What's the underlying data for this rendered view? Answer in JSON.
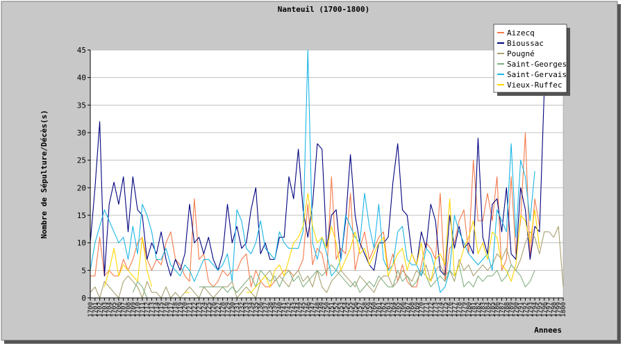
{
  "chart_data": {
    "type": "line",
    "title": "Nanteuil (1700-1800)",
    "xlabel": "Annees",
    "ylabel": "Nombre de Sépulture/Décès(s)",
    "ylim": [
      0,
      45
    ],
    "yticks": [
      0,
      5,
      10,
      15,
      20,
      25,
      30,
      35,
      40,
      45
    ],
    "xlim": [
      1700,
      1800
    ],
    "grid": true,
    "legend_position": "top-right",
    "x": [
      1700,
      1701,
      1702,
      1703,
      1704,
      1705,
      1706,
      1707,
      1708,
      1709,
      1710,
      1711,
      1712,
      1713,
      1714,
      1715,
      1716,
      1717,
      1718,
      1719,
      1720,
      1721,
      1722,
      1723,
      1724,
      1725,
      1726,
      1727,
      1728,
      1729,
      1730,
      1731,
      1732,
      1733,
      1734,
      1735,
      1736,
      1737,
      1738,
      1739,
      1740,
      1741,
      1742,
      1743,
      1744,
      1745,
      1746,
      1747,
      1748,
      1749,
      1750,
      1751,
      1752,
      1753,
      1754,
      1755,
      1756,
      1757,
      1758,
      1759,
      1760,
      1761,
      1762,
      1763,
      1764,
      1765,
      1766,
      1767,
      1768,
      1769,
      1770,
      1771,
      1772,
      1773,
      1774,
      1775,
      1776,
      1777,
      1778,
      1779,
      1780,
      1781,
      1782,
      1783,
      1784,
      1785,
      1786,
      1787,
      1788,
      1789,
      1790,
      1791,
      1792,
      1793,
      1794,
      1795,
      1796,
      1797,
      1798,
      1799,
      1800
    ],
    "series": [
      {
        "name": "Aizecq",
        "color": "#f4794a",
        "values": [
          4,
          4,
          11,
          4,
          5,
          4,
          4,
          7,
          5,
          7,
          10,
          11,
          7,
          5,
          7,
          6,
          10,
          12,
          7,
          6,
          4,
          3,
          18,
          7,
          8,
          3,
          2,
          3,
          5,
          4,
          5,
          5,
          7,
          8,
          2,
          5,
          3,
          2,
          2,
          3,
          4,
          5,
          5,
          4,
          5,
          7,
          17,
          6,
          9,
          8,
          4,
          22,
          7,
          9,
          8,
          19,
          5,
          9,
          12,
          7,
          9,
          11,
          12,
          5,
          8,
          3,
          6,
          3,
          2,
          2,
          6,
          10,
          9,
          7,
          19,
          3,
          9,
          10,
          14,
          16,
          8,
          25,
          14,
          14,
          19,
          14,
          22,
          5,
          7,
          22,
          8,
          14,
          30,
          7,
          18,
          13,
          null,
          null,
          null,
          null,
          null
        ]
      },
      {
        "name": "Bioussac",
        "color": "#00007f",
        "values": [
          10,
          20,
          32,
          4,
          17,
          21,
          17,
          22,
          12,
          22,
          16,
          15,
          7,
          10,
          8,
          12,
          7,
          4,
          7,
          5,
          8,
          17,
          10,
          11,
          8,
          11,
          7,
          5,
          8,
          17,
          10,
          13,
          9,
          10,
          16,
          20,
          8,
          10,
          7,
          7,
          11,
          11,
          22,
          18,
          27,
          16,
          11,
          17,
          28,
          27,
          9,
          15,
          16,
          7,
          14,
          26,
          15,
          10,
          8,
          6,
          5,
          10,
          10,
          11,
          21,
          28,
          16,
          15,
          8,
          6,
          12,
          9,
          17,
          14,
          5,
          4,
          15,
          9,
          13,
          9,
          10,
          8,
          29,
          11,
          8,
          17,
          18,
          12,
          20,
          8,
          7,
          20,
          16,
          7,
          13,
          12,
          38,
          null,
          null,
          null,
          null
        ]
      },
      {
        "name": "Pougné",
        "color": "#a8a070",
        "values": [
          1,
          2,
          0,
          3,
          2,
          1,
          0,
          3,
          4,
          3,
          2,
          0,
          3,
          1,
          1,
          0,
          2,
          0,
          1,
          0,
          1,
          2,
          1,
          0,
          2,
          1,
          0,
          1,
          2,
          2,
          3,
          0,
          1,
          2,
          1,
          0,
          3,
          4,
          5,
          3,
          4,
          3,
          2,
          4,
          5,
          3,
          4,
          2,
          5,
          2,
          1,
          3,
          4,
          5,
          4,
          3,
          2,
          4,
          3,
          2,
          1,
          3,
          4,
          4,
          2,
          3,
          5,
          4,
          3,
          5,
          4,
          6,
          3,
          5,
          6,
          4,
          5,
          3,
          7,
          5,
          6,
          4,
          5,
          6,
          5,
          6,
          8,
          7,
          9,
          6,
          5,
          7,
          10,
          12,
          11,
          8,
          12,
          12,
          11,
          13,
          2
        ]
      },
      {
        "name": "Saint-Georges",
        "color": "#7fae7f",
        "values": [
          null,
          null,
          null,
          null,
          null,
          null,
          null,
          null,
          null,
          1,
          3,
          2,
          0,
          null,
          null,
          null,
          null,
          null,
          null,
          null,
          null,
          null,
          null,
          2,
          2,
          2,
          2,
          2,
          2,
          1,
          2,
          1,
          2,
          3,
          4,
          2,
          5,
          4,
          3,
          4,
          2,
          4,
          5,
          3,
          4,
          2,
          3,
          4,
          5,
          4,
          5,
          6,
          5,
          4,
          3,
          2,
          3,
          1,
          2,
          3,
          2,
          4,
          3,
          2,
          2,
          5,
          3,
          4,
          2,
          3,
          5,
          4,
          2,
          3,
          4,
          3,
          5,
          4,
          6,
          2,
          3,
          2,
          4,
          3,
          4,
          4,
          5,
          3,
          4,
          6,
          5,
          4,
          2,
          3,
          5,
          null,
          null,
          null,
          null,
          null,
          null
        ]
      },
      {
        "name": "Saint-Gervais",
        "color": "#1ab6e6",
        "values": [
          5,
          10,
          13,
          16,
          14,
          12,
          10,
          11,
          7,
          13,
          8,
          17,
          15,
          12,
          7,
          7,
          9,
          6,
          5,
          4,
          6,
          5,
          3,
          5,
          7,
          7,
          6,
          5,
          6,
          8,
          3,
          16,
          14,
          9,
          8,
          10,
          14,
          9,
          8,
          7,
          12,
          10,
          9,
          9,
          9,
          12,
          45,
          10,
          7,
          11,
          8,
          4,
          5,
          7,
          15,
          13,
          11,
          10,
          19,
          13,
          9,
          17,
          7,
          5,
          6,
          12,
          13,
          7,
          6,
          6,
          4,
          9,
          8,
          5,
          1,
          2,
          5,
          15,
          12,
          10,
          8,
          7,
          6,
          7,
          8,
          5,
          16,
          14,
          12,
          28,
          11,
          25,
          22,
          14,
          23,
          null,
          null,
          null,
          null,
          null,
          null
        ]
      },
      {
        "name": "Vieux-Ruffec",
        "color": "#ffd700",
        "values": [
          null,
          null,
          null,
          2,
          5,
          9,
          4,
          6,
          5,
          4,
          3,
          11,
          5,
          2,
          null,
          null,
          null,
          null,
          null,
          null,
          1,
          1,
          null,
          null,
          null,
          null,
          null,
          null,
          null,
          null,
          null,
          null,
          null,
          1,
          1,
          2,
          3,
          4,
          2,
          5,
          6,
          4,
          7,
          10,
          11,
          13,
          19,
          13,
          10,
          11,
          9,
          13,
          10,
          5,
          7,
          9,
          12,
          8,
          9,
          6,
          8,
          10,
          11,
          4,
          6,
          8,
          9,
          5,
          8,
          6,
          10,
          4,
          3,
          7,
          8,
          6,
          18,
          4,
          6,
          9,
          11,
          14,
          8,
          10,
          7,
          12,
          11,
          6,
          5,
          3,
          6,
          15,
          14,
          10,
          16,
          9,
          null,
          null,
          null,
          null,
          null
        ]
      }
    ]
  }
}
